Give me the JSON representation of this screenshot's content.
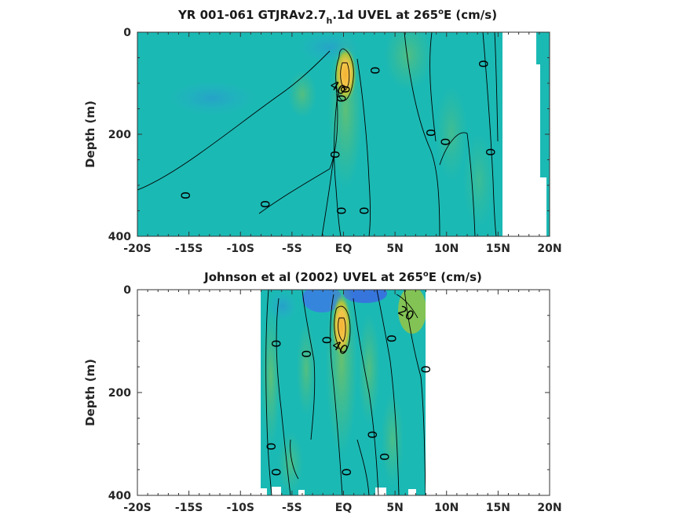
{
  "chart_data": [
    {
      "type": "contour",
      "title_main": "YR 001-061 GTJRAv2.7",
      "title_sub": "h",
      "title_rest": ".1d UVEL at 265",
      "title_sup": "o",
      "title_end": "E (cm/s)",
      "ylabel": "Depth (m)",
      "xlim": [
        -20,
        20
      ],
      "ylim": [
        0,
        400
      ],
      "x_ticks": [
        -20,
        -15,
        -10,
        -5,
        0,
        5,
        10,
        15,
        20
      ],
      "x_tick_labels": [
        "-20S",
        "-15S",
        "-10S",
        "-5S",
        "EQ",
        "5N",
        "10N",
        "15N",
        "20N"
      ],
      "y_ticks": [
        0,
        200,
        400
      ],
      "y_tick_labels": [
        "0",
        "200",
        "400"
      ],
      "data_extent_lat": [
        -20,
        20
      ],
      "contour_labels": [
        {
          "text": "0",
          "lat": -15.3,
          "depth": 320
        },
        {
          "text": "0",
          "lat": -7.6,
          "depth": 337
        },
        {
          "text": "40",
          "lat": -0.5,
          "depth": 108
        },
        {
          "text": "0",
          "lat": -0.2,
          "depth": 130
        },
        {
          "text": "0",
          "lat": 0.2,
          "depth": 112
        },
        {
          "text": "0",
          "lat": 3.1,
          "depth": 75
        },
        {
          "text": "0",
          "lat": -0.8,
          "depth": 240
        },
        {
          "text": "0",
          "lat": -0.2,
          "depth": 350
        },
        {
          "text": "0",
          "lat": 2.0,
          "depth": 350
        },
        {
          "text": "0",
          "lat": 8.5,
          "depth": 197
        },
        {
          "text": "0",
          "lat": 9.9,
          "depth": 215
        },
        {
          "text": "0",
          "lat": 13.6,
          "depth": 62
        },
        {
          "text": "0",
          "lat": 14.3,
          "depth": 235
        }
      ]
    },
    {
      "type": "contour",
      "title_main": "Johnson et al (2002) UVEL at 265",
      "title_sup": "o",
      "title_end": "E (cm/s)",
      "ylabel": "Depth (m)",
      "xlim": [
        -20,
        20
      ],
      "ylim": [
        0,
        400
      ],
      "x_ticks": [
        -20,
        -15,
        -10,
        -5,
        0,
        5,
        10,
        15,
        20
      ],
      "x_tick_labels": [
        "-20S",
        "-15S",
        "-10S",
        "-5S",
        "EQ",
        "5N",
        "10N",
        "15N",
        "20N"
      ],
      "y_ticks": [
        0,
        200,
        400
      ],
      "y_tick_labels": [
        "0",
        "200",
        "400"
      ],
      "data_extent_lat": [
        -8,
        8
      ],
      "contour_labels": [
        {
          "text": "20",
          "lat": 6.1,
          "depth": 45
        },
        {
          "text": "0",
          "lat": -6.5,
          "depth": 105
        },
        {
          "text": "0",
          "lat": -3.6,
          "depth": 125
        },
        {
          "text": "0",
          "lat": -1.6,
          "depth": 98
        },
        {
          "text": "40",
          "lat": -0.3,
          "depth": 112
        },
        {
          "text": "0",
          "lat": 4.7,
          "depth": 95
        },
        {
          "text": "0",
          "lat": 8.0,
          "depth": 155
        },
        {
          "text": "0",
          "lat": -7.0,
          "depth": 305
        },
        {
          "text": "0",
          "lat": -6.5,
          "depth": 355
        },
        {
          "text": "0",
          "lat": 0.3,
          "depth": 355
        },
        {
          "text": "0",
          "lat": 2.8,
          "depth": 282
        },
        {
          "text": "0",
          "lat": 4.0,
          "depth": 325
        }
      ]
    }
  ]
}
